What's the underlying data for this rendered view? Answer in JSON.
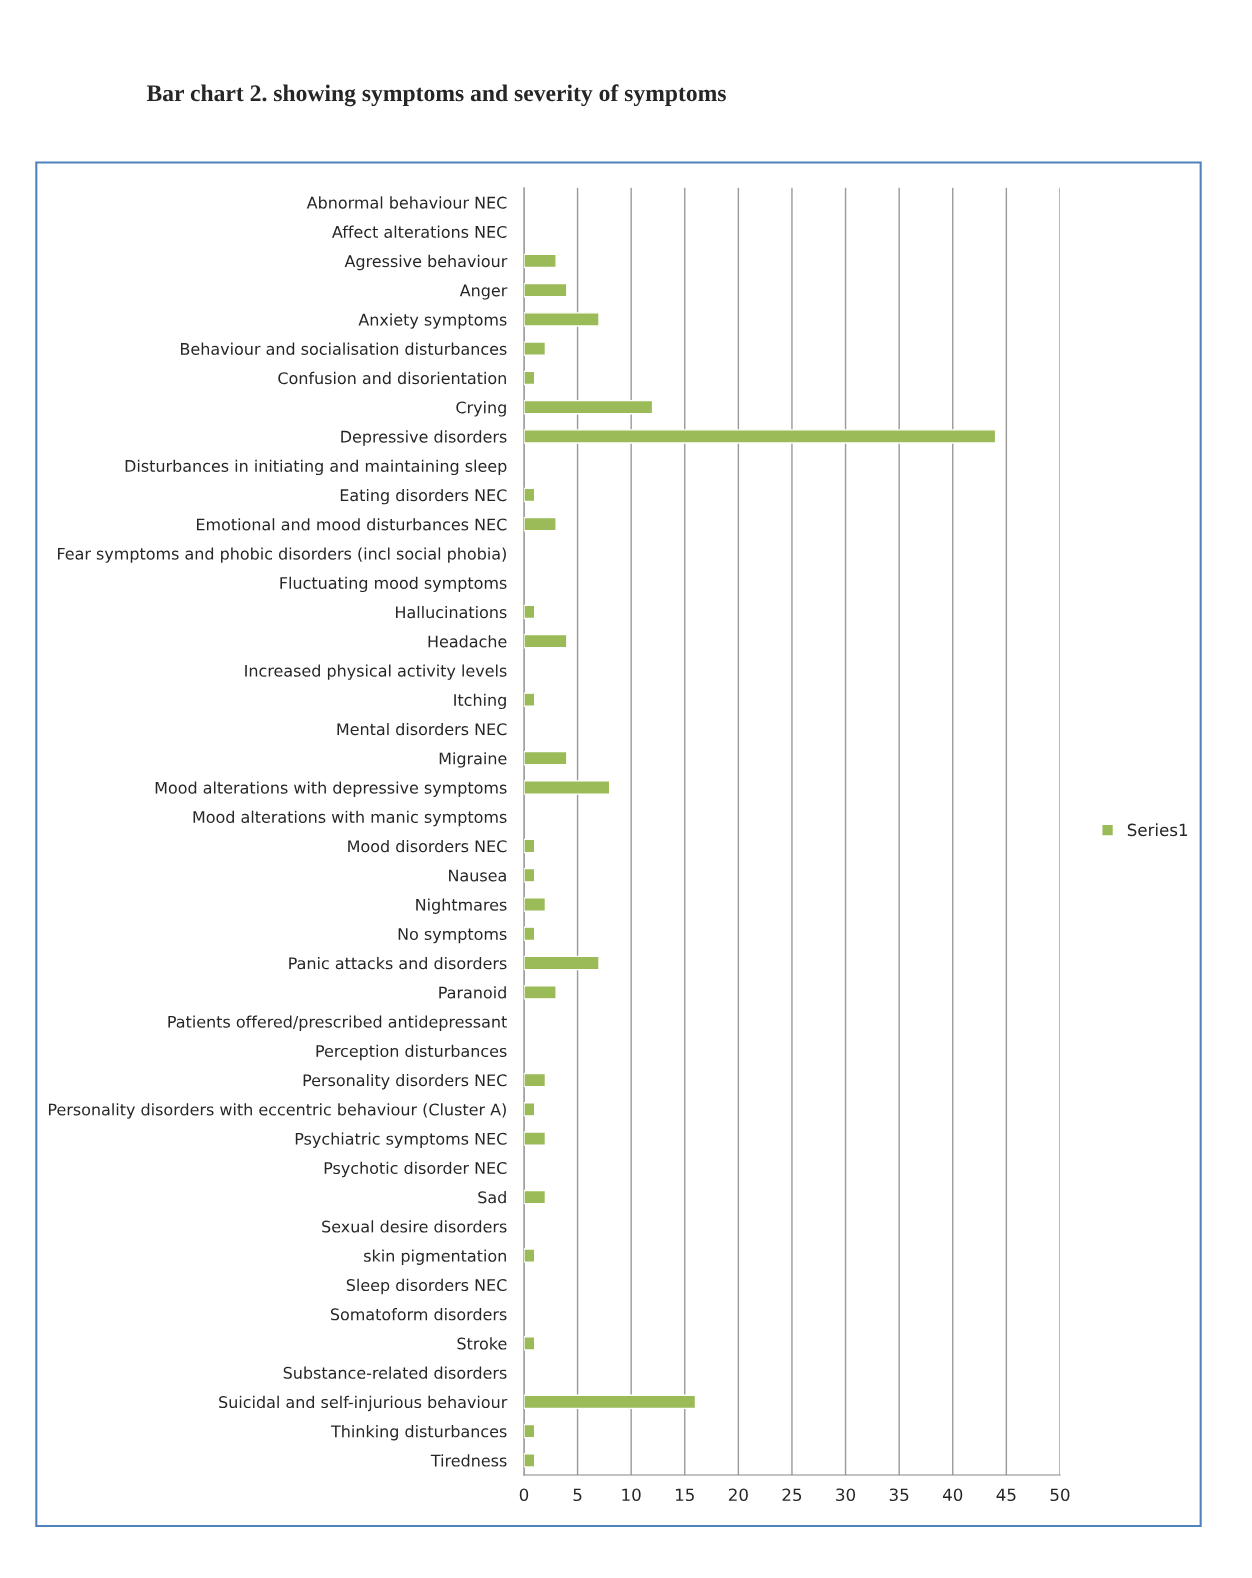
{
  "chart_data": {
    "type": "bar",
    "orientation": "horizontal",
    "title": "Bar chart 2. showing symptoms and severity of symptoms",
    "categories": [
      "Abnormal behaviour NEC",
      "Affect alterations NEC",
      "Agressive behaviour",
      "Anger",
      "Anxiety symptoms",
      "Behaviour and socialisation disturbances",
      "Confusion and disorientation",
      "Crying",
      "Depressive disorders",
      "Disturbances in initiating and maintaining sleep",
      "Eating disorders NEC",
      "Emotional and mood disturbances NEC",
      "Fear symptoms and phobic disorders (incl social phobia)",
      "Fluctuating mood symptoms",
      "Hallucinations",
      "Headache",
      "Increased physical activity levels",
      "Itching",
      "Mental disorders NEC",
      "Migraine",
      "Mood alterations with depressive symptoms",
      "Mood alterations with manic symptoms",
      "Mood disorders NEC",
      "Nausea",
      "Nightmares",
      "No symptoms",
      "Panic attacks and disorders",
      "Paranoid",
      "Patients offered/prescribed antidepressant",
      "Perception disturbances",
      "Personality disorders NEC",
      "Personality disorders with eccentric behaviour (Cluster A)",
      "Psychiatric symptoms NEC",
      "Psychotic disorder NEC",
      "Sad",
      "Sexual desire disorders",
      "skin pigmentation",
      "Sleep disorders NEC",
      "Somatoform disorders",
      "Stroke",
      "Substance-related disorders",
      "Suicidal and self-injurious behaviour",
      "Thinking disturbances",
      "Tiredness"
    ],
    "series": [
      {
        "name": "Series1",
        "color": "#9bbb59",
        "values": [
          null,
          null,
          3,
          4,
          7,
          2,
          1,
          12,
          44,
          null,
          1,
          3,
          null,
          null,
          1,
          4,
          null,
          1,
          null,
          4,
          8,
          null,
          1,
          1,
          2,
          1,
          7,
          3,
          null,
          null,
          2,
          1,
          2,
          null,
          2,
          null,
          1,
          null,
          null,
          1,
          null,
          16,
          1,
          1
        ]
      }
    ],
    "xlim": [
      0,
      50
    ],
    "xticks": [
      0,
      5,
      10,
      15,
      20,
      25,
      30,
      35,
      40,
      45,
      50
    ],
    "grid": "x",
    "legend": "right"
  }
}
